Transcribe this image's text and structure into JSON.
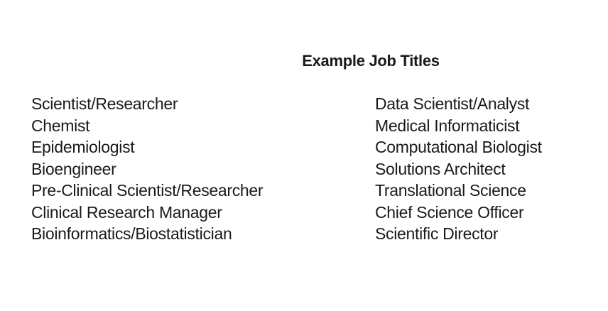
{
  "page": {
    "background_color": "#ffffff",
    "text_color": "#1a1a1a"
  },
  "title": "Example Job Titles",
  "columns": {
    "left": [
      "Scientist/Researcher",
      "Chemist",
      "Epidemiologist",
      "Bioengineer",
      "Pre-Clinical Scientist/Researcher",
      "Clinical Research Manager",
      "Bioinformatics/Biostatistician"
    ],
    "right": [
      "Data Scientist/Analyst",
      "Medical Informaticist",
      "Computational Biologist",
      "Solutions Architect",
      "Translational Science",
      "Chief Science Officer",
      "Scientific Director"
    ]
  }
}
